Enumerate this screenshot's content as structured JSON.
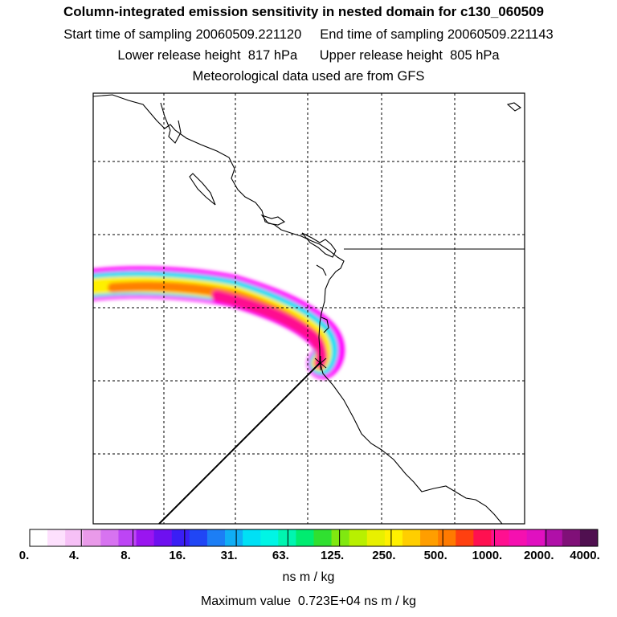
{
  "header": {
    "title": "Column-integrated emission sensitivity in nested domain for c130_060509",
    "start_label": "Start time of sampling",
    "start_value": "20060509.221120",
    "end_label": "End time of sampling",
    "end_value": "20060509.221143",
    "lower_label": "Lower release height",
    "lower_value": "817 hPa",
    "upper_label": "Upper release height",
    "upper_value": "805 hPa",
    "met_text": "Meteorological data used are from GFS"
  },
  "colorbar": {
    "tick_labels": [
      "0.",
      "4.",
      "8.",
      "16.",
      "31.",
      "63.",
      "125.",
      "250.",
      "500.",
      "1000.",
      "2000.",
      "4000."
    ],
    "colors": [
      "#ffffff",
      "#fde0fd",
      "#f6c0f6",
      "#e99ae9",
      "#d773f0",
      "#bd45f5",
      "#9a15f0",
      "#6e10f0",
      "#3a1ef5",
      "#2046f5",
      "#1c7ef5",
      "#10aef5",
      "#00e0f5",
      "#00f5e5",
      "#00f5b0",
      "#00ec70",
      "#30e030",
      "#80e810",
      "#b8f000",
      "#e8f000",
      "#fff000",
      "#ffce00",
      "#ff9e00",
      "#ff7a00",
      "#ff4010",
      "#ff1050",
      "#ff1090",
      "#f510b0",
      "#e010c0",
      "#b010a8",
      "#801078",
      "#501050"
    ],
    "unit": "ns m / kg",
    "max_label": "Maximum value",
    "max_value": "0.723E+04 ns m / kg"
  },
  "map": {
    "coastline_color": "#000000",
    "grid_color": "#000000",
    "plume_colors": {
      "fringe": "#ff00ff",
      "outer": "#00e0f5",
      "middle": "#fff000",
      "inner": "#ff8000",
      "core": "#ff1090"
    }
  }
}
